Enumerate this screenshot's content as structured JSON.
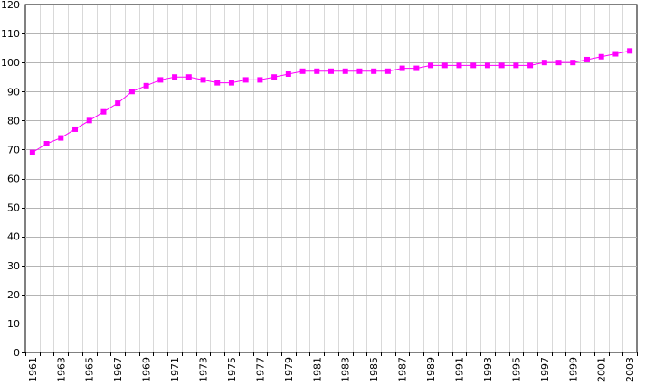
{
  "chart_data": {
    "type": "line",
    "title": "",
    "xlabel": "",
    "ylabel": "",
    "x": [
      1961,
      1962,
      1963,
      1964,
      1965,
      1966,
      1967,
      1968,
      1969,
      1970,
      1971,
      1972,
      1973,
      1974,
      1975,
      1976,
      1977,
      1978,
      1979,
      1980,
      1981,
      1982,
      1983,
      1984,
      1985,
      1986,
      1987,
      1988,
      1989,
      1990,
      1991,
      1992,
      1993,
      1994,
      1995,
      1996,
      1997,
      1998,
      1999,
      2000,
      2001,
      2002,
      2003
    ],
    "series": [
      {
        "values": [
          69,
          72,
          74,
          77,
          80,
          83,
          86,
          90,
          92,
          94,
          95,
          95,
          94,
          93,
          93,
          94,
          94,
          95,
          96,
          97,
          97,
          97,
          97,
          97,
          97,
          97,
          98,
          98,
          99,
          99,
          99,
          99,
          99,
          99,
          99,
          99,
          100,
          100,
          100,
          101,
          102,
          103,
          104
        ],
        "color": "#ff00ff",
        "marker": "square"
      }
    ],
    "xlim": [
      1961,
      2003
    ],
    "ylim": [
      0,
      120
    ],
    "y_ticks": [
      0,
      10,
      20,
      30,
      40,
      50,
      60,
      70,
      80,
      90,
      100,
      110,
      120
    ],
    "x_tick_labels": [
      "1961",
      "1963",
      "1965",
      "1967",
      "1969",
      "1971",
      "1973",
      "1975",
      "1977",
      "1979",
      "1981",
      "1983",
      "1985",
      "1987",
      "1989",
      "1991",
      "1993",
      "1995",
      "1997",
      "1999",
      "2001",
      "2003"
    ],
    "grid": true,
    "legend": "none"
  }
}
